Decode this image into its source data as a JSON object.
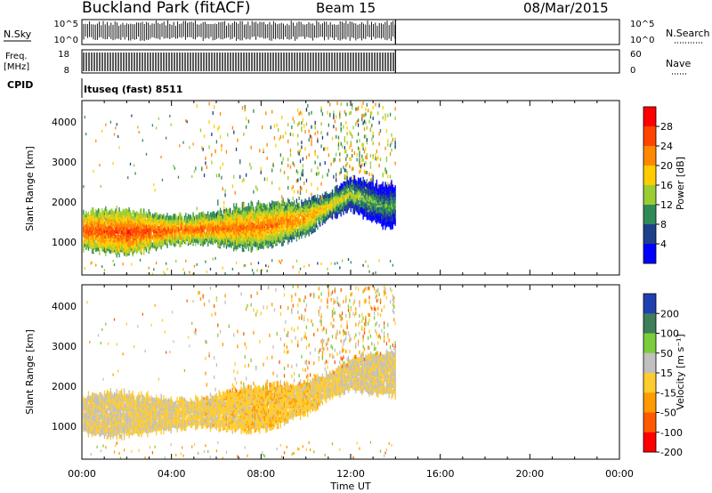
{
  "header": {
    "site": "Buckland Park (fitACF)",
    "beam": "Beam 15",
    "date": "08/Mar/2015"
  },
  "strips": {
    "nsky_label": "N.Sky",
    "nsky_ticks": [
      "10^5",
      "10^0"
    ],
    "nsearch_label": "N.Search",
    "nsearch_ticks": [
      "10^5",
      "10^0"
    ],
    "freq_label_1": "Freq.",
    "freq_label_2": "[MHz]",
    "freq_ticks": [
      "18",
      "8"
    ],
    "nave_label": "Nave",
    "nave_ticks": [
      "60",
      "0"
    ],
    "cpid_label": "CPID",
    "cpid_value": "Ituseq (fast) 8511"
  },
  "colorbars": {
    "power": {
      "label": "Power [dB]",
      "ticks": [
        "28",
        "24",
        "20",
        "16",
        "12",
        "8",
        "4"
      ],
      "colors": [
        "#ff0000",
        "#ff4400",
        "#ff8800",
        "#ffcc00",
        "#9acd32",
        "#2e8b57",
        "#1e3f8b",
        "#0000ff"
      ]
    },
    "velocity": {
      "label": "Velocity [m s⁻¹]",
      "ticks": [
        "200",
        "100",
        "50",
        "15",
        "-15",
        "-50",
        "-100",
        "-200"
      ],
      "colors": [
        "#2040b0",
        "#3e7f5a",
        "#7ccd3c",
        "#c0c0c0",
        "#ffcc30",
        "#ff9a00",
        "#ff5a00",
        "#ff0000"
      ]
    }
  },
  "xaxis": {
    "label": "Time UT",
    "ticks": [
      "00:00",
      "04:00",
      "08:00",
      "12:00",
      "16:00",
      "20:00",
      "00:00"
    ]
  },
  "chart_data": [
    {
      "type": "heatmap",
      "name": "power",
      "ylabel": "Slant Range [km]",
      "yticks": [
        "1000",
        "2000",
        "3000",
        "4000"
      ],
      "xlim": [
        0,
        24
      ],
      "ylim": [
        200,
        4500
      ],
      "data_end_hour": 14,
      "colorbar_range": [
        0,
        32
      ],
      "main_band": [
        {
          "hour": 0.5,
          "range_center": 1300,
          "power": 26
        },
        {
          "hour": 2,
          "range_center": 1250,
          "power": 27
        },
        {
          "hour": 4,
          "range_center": 1300,
          "power": 25
        },
        {
          "hour": 6,
          "range_center": 1350,
          "power": 24
        },
        {
          "hour": 8,
          "range_center": 1400,
          "power": 24
        },
        {
          "hour": 10,
          "range_center": 1600,
          "power": 22
        },
        {
          "hour": 12,
          "range_center": 2200,
          "power": 16
        },
        {
          "hour": 13.5,
          "range_center": 1900,
          "power": 12
        }
      ]
    },
    {
      "type": "heatmap",
      "name": "velocity",
      "ylabel": "Slant Range [km]",
      "yticks": [
        "1000",
        "2000",
        "3000",
        "4000"
      ],
      "xlim": [
        0,
        24
      ],
      "ylim": [
        200,
        4500
      ],
      "data_end_hour": 14,
      "colorbar_range": [
        -250,
        250
      ],
      "main_band": [
        {
          "hour": 0.5,
          "range_center": 1300,
          "velocity": 0
        },
        {
          "hour": 4,
          "range_center": 1300,
          "velocity": -10
        },
        {
          "hour": 8,
          "range_center": 1450,
          "velocity": -40
        },
        {
          "hour": 10,
          "range_center": 1700,
          "velocity": -30
        },
        {
          "hour": 12,
          "range_center": 2300,
          "velocity": 0
        }
      ]
    }
  ]
}
